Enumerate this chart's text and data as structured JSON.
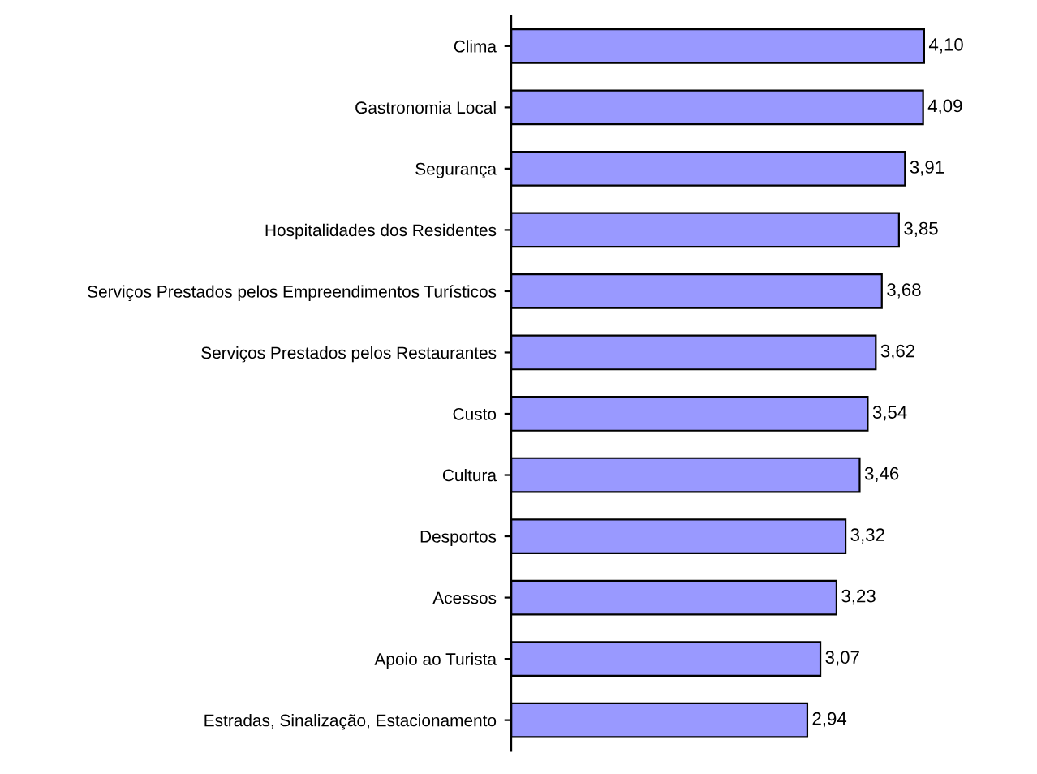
{
  "chart_data": {
    "type": "bar",
    "orientation": "horizontal",
    "categories": [
      "Clima",
      "Gastronomia Local",
      "Segurança",
      "Hospitalidades dos Residentes",
      "Serviços Prestados pelos Empreendimentos Turísticos",
      "Serviços Prestados pelos Restaurantes",
      "Custo",
      "Cultura",
      "Desportos",
      "Acessos",
      "Apoio ao Turista",
      "Estradas, Sinalização, Estacionamento"
    ],
    "values": [
      4.1,
      4.09,
      3.91,
      3.85,
      3.68,
      3.62,
      3.54,
      3.46,
      3.32,
      3.23,
      3.07,
      2.94
    ],
    "value_labels": [
      "4,10",
      "4,09",
      "3,91",
      "3,85",
      "3,68",
      "3,62",
      "3,54",
      "3,46",
      "3,32",
      "3,23",
      "3,07",
      "2,94"
    ],
    "color": "#9999ff",
    "grid": false,
    "legend": false
  }
}
